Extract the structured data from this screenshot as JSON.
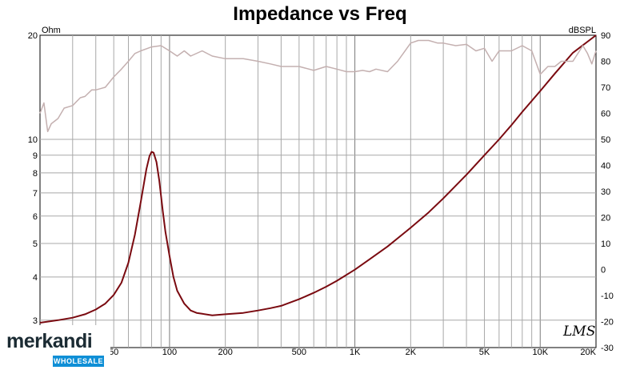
{
  "chart_data": {
    "type": "line",
    "title": "Impedance vs Freq",
    "y_left_unit": "Ohm",
    "y_right_unit": "dBSPL",
    "x_scale": "log",
    "y_left_scale": "log",
    "xlim": [
      20,
      20000
    ],
    "ylim_left": [
      2.5,
      20
    ],
    "ylim_right": [
      -30,
      90
    ],
    "grid": true,
    "x_ticks": [
      {
        "value": 50,
        "label": "50"
      },
      {
        "value": 100,
        "label": "100"
      },
      {
        "value": 200,
        "label": "200"
      },
      {
        "value": 500,
        "label": "500"
      },
      {
        "value": 1000,
        "label": "1K"
      },
      {
        "value": 2000,
        "label": "2K"
      },
      {
        "value": 5000,
        "label": "5K"
      },
      {
        "value": 10000,
        "label": "10K"
      },
      {
        "value": 20000,
        "label": "20K"
      }
    ],
    "y_left_ticks": [
      {
        "value": 3,
        "label": "3"
      },
      {
        "value": 4,
        "label": "4"
      },
      {
        "value": 5,
        "label": "5"
      },
      {
        "value": 6,
        "label": "6"
      },
      {
        "value": 7,
        "label": "7"
      },
      {
        "value": 8,
        "label": "8"
      },
      {
        "value": 9,
        "label": "9"
      },
      {
        "value": 10,
        "label": "10"
      },
      {
        "value": 20,
        "label": "20"
      }
    ],
    "y_right_ticks": [
      {
        "value": 90,
        "label": "90"
      },
      {
        "value": 80,
        "label": "80"
      },
      {
        "value": 70,
        "label": "70"
      },
      {
        "value": 60,
        "label": "60"
      },
      {
        "value": 50,
        "label": "50"
      },
      {
        "value": 40,
        "label": "40"
      },
      {
        "value": 30,
        "label": "30"
      },
      {
        "value": 20,
        "label": "20"
      },
      {
        "value": 10,
        "label": "10"
      },
      {
        "value": 0,
        "label": "0"
      },
      {
        "value": -10,
        "label": "-10"
      },
      {
        "value": -20,
        "label": "-20"
      },
      {
        "value": -30,
        "label": "-30"
      }
    ],
    "series": [
      {
        "axis": "left",
        "color": "#7a0a10",
        "x": [
          20,
          25,
          30,
          35,
          40,
          45,
          50,
          55,
          60,
          65,
          70,
          75,
          78,
          80,
          82,
          85,
          88,
          92,
          95,
          100,
          105,
          110,
          120,
          130,
          140,
          150,
          170,
          200,
          250,
          300,
          350,
          400,
          500,
          600,
          700,
          800,
          1000,
          1200,
          1500,
          2000,
          2500,
          3000,
          4000,
          5000,
          6000,
          7000,
          8000,
          10000,
          12000,
          15000,
          20000
        ],
        "y": [
          2.95,
          3.0,
          3.05,
          3.12,
          3.22,
          3.35,
          3.55,
          3.85,
          4.4,
          5.3,
          6.6,
          8.2,
          8.95,
          9.2,
          9.15,
          8.6,
          7.6,
          6.2,
          5.4,
          4.6,
          4.0,
          3.65,
          3.35,
          3.2,
          3.15,
          3.13,
          3.1,
          3.12,
          3.15,
          3.2,
          3.25,
          3.3,
          3.45,
          3.6,
          3.75,
          3.9,
          4.2,
          4.5,
          4.9,
          5.55,
          6.15,
          6.75,
          7.9,
          9.0,
          10.0,
          11.0,
          12.0,
          13.8,
          15.5,
          17.8,
          20.0
        ]
      },
      {
        "axis": "right",
        "color": "#c4b0b0",
        "x": [
          20,
          21,
          22,
          23,
          25,
          27,
          30,
          33,
          35,
          38,
          40,
          45,
          50,
          55,
          60,
          65,
          70,
          80,
          90,
          100,
          110,
          120,
          130,
          150,
          170,
          200,
          250,
          300,
          350,
          400,
          500,
          600,
          700,
          800,
          900,
          1000,
          1100,
          1200,
          1300,
          1500,
          1700,
          2000,
          2200,
          2500,
          2800,
          3000,
          3500,
          4000,
          4500,
          5000,
          5500,
          6000,
          7000,
          8000,
          9000,
          10000,
          11000,
          12000,
          13000,
          15000,
          17000,
          18000,
          19000,
          20000
        ],
        "y": [
          60,
          64,
          53,
          56,
          58,
          62,
          63,
          66,
          66.5,
          69,
          69,
          70,
          74,
          77,
          80,
          83,
          84,
          85.5,
          86,
          84,
          82,
          84,
          82,
          84,
          82,
          81,
          81,
          80,
          79,
          78,
          78,
          76.5,
          78,
          77,
          76,
          76,
          76.5,
          76,
          77,
          76,
          80,
          87,
          88,
          88,
          87,
          87,
          86,
          86.5,
          84,
          85,
          80,
          84,
          84,
          86,
          84,
          75,
          78,
          78,
          80,
          80,
          86,
          83,
          79,
          84
        ]
      }
    ]
  },
  "watermark": {
    "name": "merkandi",
    "sub": "WHOLESALE"
  },
  "signature": "LMS"
}
